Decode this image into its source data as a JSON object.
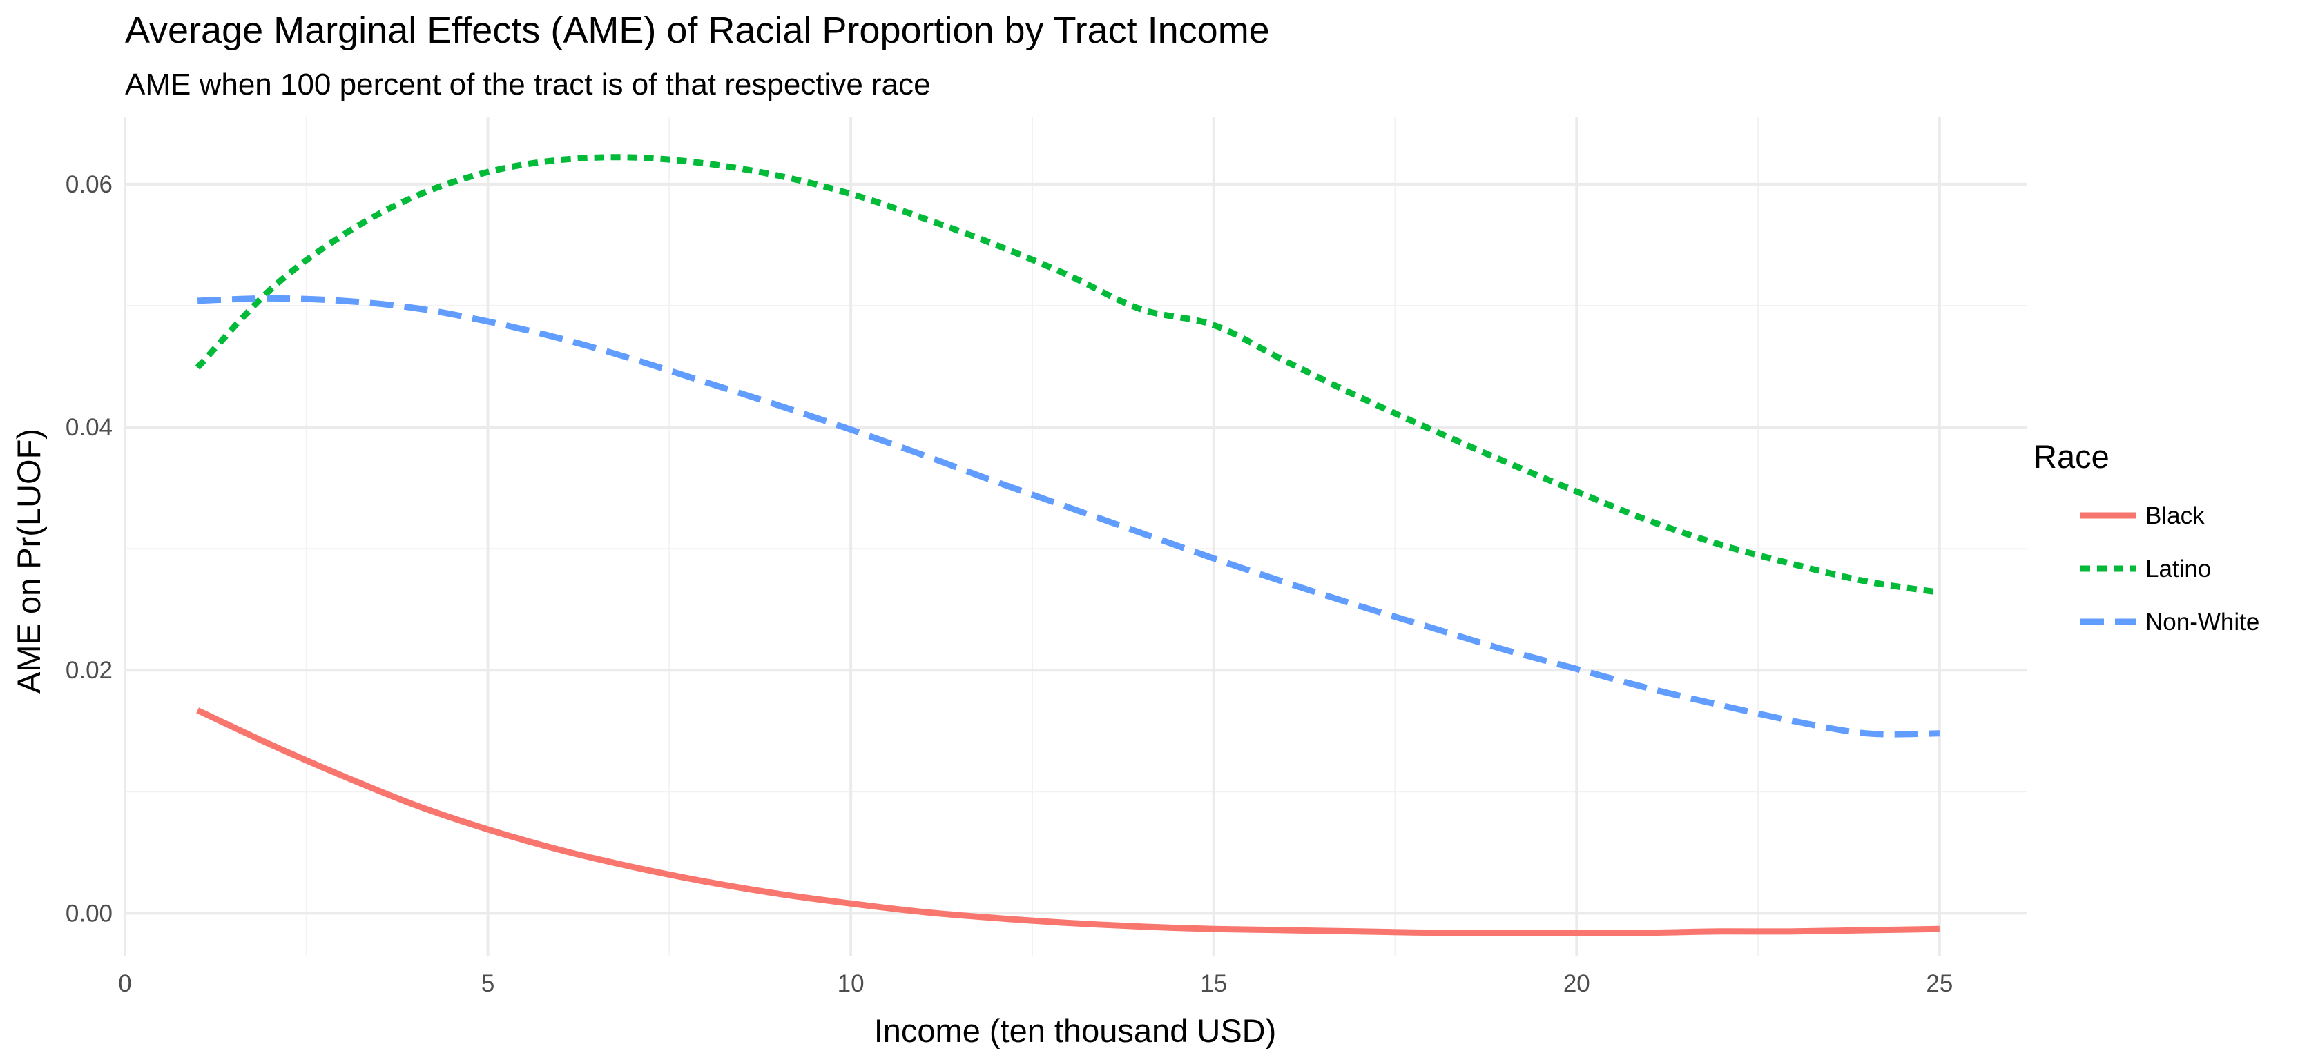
{
  "chart_data": {
    "type": "line",
    "title": "Average Marginal Effects (AME) of Racial Proportion by Tract Income",
    "subtitle": "AME when 100 percent of the tract is of that respective race",
    "xlabel": "Income (ten thousand USD)",
    "ylabel": "AME on Pr(LUOF)",
    "xlim": [
      0,
      26.2
    ],
    "ylim": [
      -0.0035,
      0.0655
    ],
    "x_ticks": [
      0,
      5,
      10,
      15,
      20,
      25
    ],
    "x_tick_labels": [
      "0",
      "5",
      "10",
      "15",
      "20",
      "25"
    ],
    "y_ticks": [
      0,
      0.02,
      0.04,
      0.06
    ],
    "y_tick_labels": [
      "0.00",
      "0.02",
      "0.04",
      "0.06"
    ],
    "grid": true,
    "legend": {
      "title": "Race",
      "position": "right"
    },
    "series": [
      {
        "name": "Black",
        "color": "#F8766D",
        "linetype": "solid",
        "x": [
          1,
          2,
          3,
          4,
          5,
          6,
          7,
          8,
          9,
          10,
          11,
          12,
          13,
          14,
          15,
          16,
          17,
          18,
          19,
          20,
          21,
          22,
          23,
          24,
          25
        ],
        "y": [
          0.0167,
          0.0139,
          0.0113,
          0.0089,
          0.0069,
          0.0052,
          0.0038,
          0.0026,
          0.0016,
          0.0008,
          0.0001,
          -0.0004,
          -0.0008,
          -0.0011,
          -0.0013,
          -0.0014,
          -0.0015,
          -0.0016,
          -0.0016,
          -0.0016,
          -0.0016,
          -0.0015,
          -0.0015,
          -0.0014,
          -0.0013
        ]
      },
      {
        "name": "Latino",
        "color": "#00BA38",
        "linetype": "dotted",
        "x": [
          1,
          2,
          3,
          4,
          5,
          6,
          7,
          8,
          9,
          10,
          11,
          12,
          13,
          14,
          15,
          16,
          17,
          18,
          19,
          20,
          21,
          22,
          23,
          24,
          25
        ],
        "y": [
          0.0449,
          0.0513,
          0.0558,
          0.059,
          0.061,
          0.062,
          0.0622,
          0.0617,
          0.0607,
          0.0592,
          0.0572,
          0.055,
          0.0525,
          0.0497,
          0.0484,
          0.0454,
          0.0425,
          0.0398,
          0.0372,
          0.0347,
          0.0323,
          0.0303,
          0.0287,
          0.0273,
          0.0264
        ]
      },
      {
        "name": "Non-White",
        "color": "#619CFF",
        "linetype": "dashed",
        "x": [
          1,
          2,
          3,
          4,
          5,
          6,
          7,
          8,
          9,
          10,
          11,
          12,
          13,
          14,
          15,
          16,
          17,
          18,
          19,
          20,
          21,
          22,
          23,
          24,
          25
        ],
        "y": [
          0.0504,
          0.0506,
          0.0504,
          0.0498,
          0.0487,
          0.0473,
          0.0456,
          0.0437,
          0.0418,
          0.0398,
          0.0377,
          0.0355,
          0.0334,
          0.0313,
          0.0292,
          0.0272,
          0.0253,
          0.0235,
          0.0217,
          0.0201,
          0.0185,
          0.0171,
          0.0158,
          0.0148,
          0.0148
        ]
      }
    ]
  }
}
